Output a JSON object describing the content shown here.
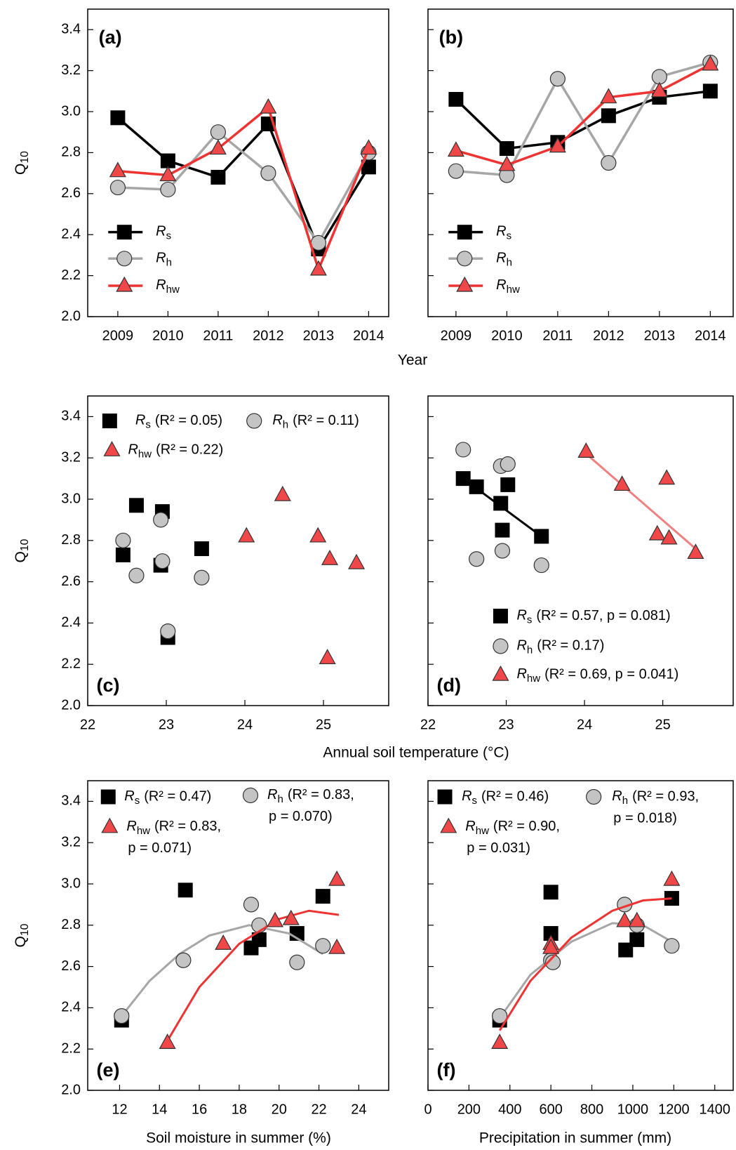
{
  "chart_data": [
    {
      "type": "line",
      "label": "(a)",
      "ylabel": "Q10",
      "xlabel": "Year",
      "x": [
        2009,
        2010,
        2011,
        2012,
        2013,
        2014
      ],
      "xlim": [
        2008.4,
        2014.4
      ],
      "xticks": [
        2009,
        2010,
        2011,
        2012,
        2013,
        2014
      ],
      "ylim": [
        2.0,
        3.5
      ],
      "yticks": [
        {
          "value": 2.0,
          "label": "2.0"
        },
        {
          "value": 2.2,
          "label": "2.2"
        },
        {
          "value": 2.4,
          "label": "2.4"
        },
        {
          "value": 2.6,
          "label": "2.6"
        },
        {
          "value": 2.8,
          "label": "2.8"
        },
        {
          "value": 3.0,
          "label": "3.0"
        },
        {
          "value": 3.2,
          "label": "3.2"
        },
        {
          "value": 3.4,
          "label": "3.4"
        }
      ],
      "series": [
        {
          "name": "Rs",
          "color": "#000000",
          "marker": "square",
          "marker_color": "#000000",
          "values": [
            2.97,
            2.76,
            2.68,
            2.94,
            2.33,
            2.73
          ]
        },
        {
          "name": "Rh",
          "color": "#a6a6a6",
          "marker": "circle",
          "marker_color": "#c4c4c4",
          "values": [
            2.63,
            2.62,
            2.9,
            2.7,
            2.36,
            2.8
          ]
        },
        {
          "name": "Rhw",
          "color": "#ee3333",
          "marker": "triangle",
          "marker_color": "#f04848",
          "values": [
            2.71,
            2.69,
            2.82,
            3.02,
            2.23,
            2.82
          ]
        }
      ]
    },
    {
      "type": "line",
      "label": "(b)",
      "x": [
        2009,
        2010,
        2011,
        2012,
        2013,
        2014
      ],
      "xlim": [
        2008.45,
        2014.45
      ],
      "xticks": [
        2009,
        2010,
        2011,
        2012,
        2013,
        2014
      ],
      "ylim": [
        2.0,
        3.5
      ],
      "yticks": [
        2.0,
        2.2,
        2.4,
        2.6,
        2.8,
        3.0,
        3.2,
        3.4
      ],
      "series": [
        {
          "name": "Rs",
          "color": "#000000",
          "marker": "square",
          "marker_color": "#000000",
          "values": [
            3.06,
            2.82,
            2.85,
            2.98,
            3.07,
            3.1
          ]
        },
        {
          "name": "Rh",
          "color": "#a6a6a6",
          "marker": "circle",
          "marker_color": "#c4c4c4",
          "values": [
            2.71,
            2.69,
            3.16,
            2.75,
            3.17,
            3.24
          ]
        },
        {
          "name": "Rhw",
          "color": "#ee3333",
          "marker": "triangle",
          "marker_color": "#f04848",
          "values": [
            2.81,
            2.74,
            2.83,
            3.07,
            3.1,
            3.23
          ]
        }
      ]
    },
    {
      "type": "scatter",
      "label": "(c)",
      "ylabel": "Q10",
      "xlabel": "Annual soil temperature (°C)",
      "xlim": [
        22,
        25.83
      ],
      "xticks": [
        22,
        23,
        24,
        25
      ],
      "ylim": [
        2.0,
        3.5
      ],
      "yticks": [
        {
          "value": 2.0,
          "label": "2.0"
        },
        {
          "value": 2.2,
          "label": "2.2"
        },
        {
          "value": 2.4,
          "label": "2.4"
        },
        {
          "value": 2.6,
          "label": "2.6"
        },
        {
          "value": 2.8,
          "label": "2.8"
        },
        {
          "value": 3.0,
          "label": "3.0"
        },
        {
          "value": 3.2,
          "label": "3.2"
        },
        {
          "value": 3.4,
          "label": "3.4"
        }
      ],
      "series": [
        {
          "name": "Rs",
          "stat": [
            "(R² = 0.05)"
          ],
          "marker": "square",
          "marker_color": "#000000",
          "x": [
            22.45,
            22.62,
            22.93,
            22.95,
            23.02,
            23.45
          ],
          "values": [
            2.73,
            2.97,
            2.68,
            2.94,
            2.33,
            2.76
          ]
        },
        {
          "name": "Rh",
          "stat": [
            "(R² = 0.11)"
          ],
          "marker": "circle",
          "marker_color": "#c4c4c4",
          "x": [
            22.45,
            22.62,
            22.93,
            22.95,
            23.02,
            23.45
          ],
          "values": [
            2.8,
            2.63,
            2.9,
            2.7,
            2.36,
            2.62
          ]
        },
        {
          "name": "Rhw",
          "stat": [
            "(R² = 0.22)"
          ],
          "marker": "triangle",
          "marker_color": "#f04848",
          "x": [
            24.02,
            24.48,
            24.93,
            25.05,
            25.08,
            25.42
          ],
          "values": [
            2.82,
            3.02,
            2.82,
            2.23,
            2.71,
            2.69
          ]
        }
      ]
    },
    {
      "type": "scatter",
      "label": "(d)",
      "xlim": [
        22,
        25.9
      ],
      "xticks": [
        22,
        23,
        24,
        25
      ],
      "ylim": [
        2.0,
        3.5
      ],
      "yticks": [
        2.0,
        2.2,
        2.4,
        2.6,
        2.8,
        3.0,
        3.2,
        3.4
      ],
      "series": [
        {
          "name": "Rs",
          "stat": [
            "(R² = 0.57, p = 0.081)"
          ],
          "marker": "square",
          "marker_color": "#000000",
          "x": [
            22.45,
            22.62,
            22.93,
            22.95,
            23.02,
            23.45
          ],
          "values": [
            3.1,
            3.06,
            2.98,
            2.85,
            3.07,
            2.82
          ],
          "fit": {
            "color": "#000000",
            "x": [
              22.45,
              23.45
            ],
            "y": [
              3.1,
              2.82
            ]
          }
        },
        {
          "name": "Rh",
          "stat": [
            "(R² = 0.17)"
          ],
          "marker": "circle",
          "marker_color": "#c4c4c4",
          "x": [
            22.45,
            22.62,
            22.93,
            22.95,
            23.02,
            23.45
          ],
          "values": [
            3.24,
            2.71,
            3.16,
            2.75,
            3.17,
            2.68
          ]
        },
        {
          "name": "Rhw",
          "stat": [
            "(R² = 0.69, p = 0.041)"
          ],
          "marker": "triangle",
          "marker_color": "#f04848",
          "x": [
            24.02,
            24.48,
            24.93,
            25.05,
            25.08,
            25.42
          ],
          "values": [
            3.23,
            3.07,
            2.83,
            3.1,
            2.81,
            2.74
          ],
          "fit": {
            "color": "#f08080",
            "x": [
              24.02,
              25.42
            ],
            "y": [
              3.22,
              2.76
            ]
          }
        }
      ]
    },
    {
      "type": "scatter",
      "label": "(e)",
      "ylabel": "Q10",
      "xlabel": "Soil moisture  in summer (%)",
      "xlim": [
        10.4,
        25.5
      ],
      "xticks": [
        12,
        14,
        16,
        18,
        20,
        22,
        24
      ],
      "ylim": [
        2.0,
        3.5
      ],
      "yticks": [
        {
          "value": 2.0,
          "label": "2.0"
        },
        {
          "value": 2.2,
          "label": "2.2"
        },
        {
          "value": 2.4,
          "label": "2.4"
        },
        {
          "value": 2.6,
          "label": "2.6"
        },
        {
          "value": 2.8,
          "label": "2.8"
        },
        {
          "value": 3.0,
          "label": "3.0"
        },
        {
          "value": 3.2,
          "label": "3.2"
        },
        {
          "value": 3.4,
          "label": "3.4"
        }
      ],
      "series": [
        {
          "name": "Rs",
          "stat": [
            "(R² = 0.47)"
          ],
          "marker": "square",
          "marker_color": "#000000",
          "x": [
            12.1,
            15.3,
            18.6,
            19.0,
            20.9,
            22.2
          ],
          "values": [
            2.34,
            2.97,
            2.69,
            2.73,
            2.76,
            2.94
          ]
        },
        {
          "name": "Rh",
          "stat": [
            "(R² = 0.83,",
            "p = 0.070)"
          ],
          "marker": "circle",
          "marker_color": "#c4c4c4",
          "x": [
            12.1,
            15.2,
            18.6,
            19.0,
            20.9,
            22.2
          ],
          "values": [
            2.36,
            2.63,
            2.9,
            2.8,
            2.62,
            2.7
          ],
          "fit": {
            "color": "#a6a6a6",
            "x": [
              12.1,
              13.5,
              15,
              16.5,
              18.5,
              20.5,
              22.2
            ],
            "y": [
              2.36,
              2.53,
              2.66,
              2.75,
              2.8,
              2.76,
              2.66
            ]
          }
        },
        {
          "name": "Rhw",
          "stat": [
            "(R² = 0.83,",
            "p = 0.071)"
          ],
          "marker": "triangle",
          "marker_color": "#f04848",
          "x": [
            14.4,
            17.2,
            19.8,
            20.6,
            22.9,
            22.9
          ],
          "values": [
            2.23,
            2.71,
            2.82,
            2.83,
            3.02,
            2.69
          ],
          "fit": {
            "color": "#ee3333",
            "x": [
              14.4,
              16,
              18,
              20,
              21.5,
              23
            ],
            "y": [
              2.24,
              2.5,
              2.71,
              2.83,
              2.87,
              2.85
            ]
          }
        }
      ]
    },
    {
      "type": "scatter",
      "label": "(f)",
      "xlabel": "Precipitation in summer (mm)",
      "xlim": [
        0,
        1490
      ],
      "xticks": [
        0,
        200,
        400,
        600,
        800,
        1000,
        1200,
        1400
      ],
      "ylim": [
        2.0,
        3.5
      ],
      "yticks": [
        2.0,
        2.2,
        2.4,
        2.6,
        2.8,
        3.0,
        3.2,
        3.4
      ],
      "series": [
        {
          "name": "Rs",
          "stat": [
            "(R² = 0.46)"
          ],
          "marker": "square",
          "marker_color": "#000000",
          "x": [
            350,
            600,
            600,
            965,
            1020,
            1190
          ],
          "values": [
            2.34,
            2.96,
            2.76,
            2.68,
            2.73,
            2.93
          ]
        },
        {
          "name": "Rh",
          "stat": [
            "(R² = 0.93,",
            "p = 0.018)"
          ],
          "marker": "circle",
          "marker_color": "#c4c4c4",
          "x": [
            350,
            600,
            610,
            960,
            1020,
            1190
          ],
          "values": [
            2.36,
            2.63,
            2.62,
            2.9,
            2.8,
            2.7
          ],
          "fit": {
            "color": "#a6a6a6",
            "x": [
              350,
              500,
              700,
              900,
              1050,
              1190
            ],
            "y": [
              2.35,
              2.56,
              2.72,
              2.81,
              2.8,
              2.72
            ]
          }
        },
        {
          "name": "Rhw",
          "stat": [
            "(R² = 0.90,",
            "p = 0.031)"
          ],
          "marker": "triangle",
          "marker_color": "#f04848",
          "x": [
            350,
            600,
            600,
            960,
            1020,
            1190
          ],
          "values": [
            2.23,
            2.71,
            2.69,
            2.82,
            2.82,
            3.02
          ],
          "fit": {
            "color": "#ee3333",
            "x": [
              350,
              500,
              700,
              900,
              1050,
              1190
            ],
            "y": [
              2.29,
              2.53,
              2.74,
              2.87,
              2.92,
              2.93
            ]
          }
        }
      ]
    }
  ]
}
